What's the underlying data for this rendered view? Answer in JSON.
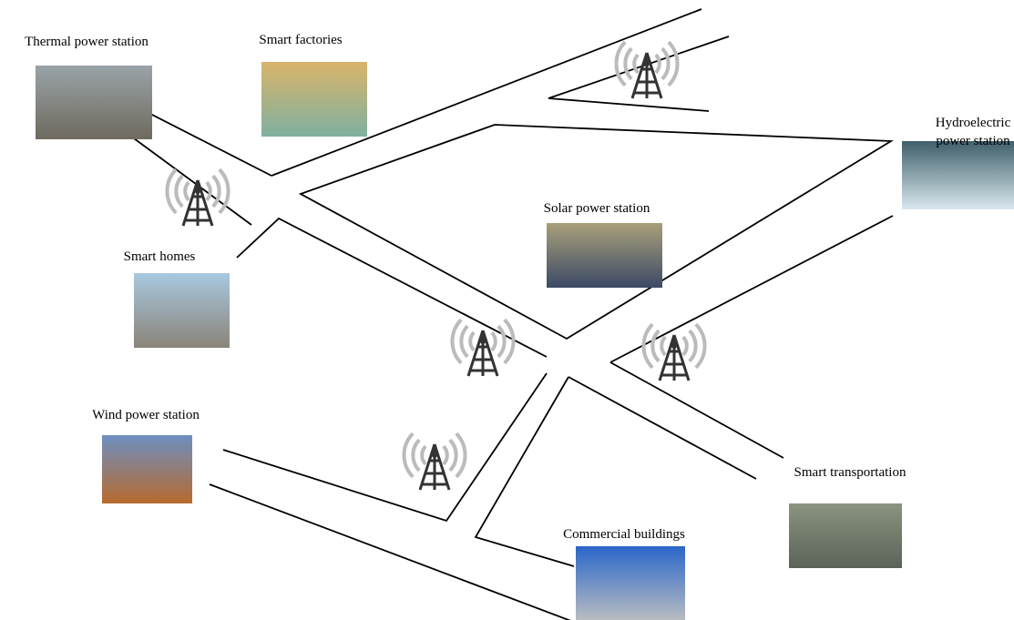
{
  "nodes": [
    {
      "label": "Thermal power station"
    },
    {
      "label": "Smart factories"
    },
    {
      "label": "Smart homes"
    },
    {
      "label": "Solar power station"
    },
    {
      "label": [
        "Hydroelectric",
        "power station"
      ]
    },
    {
      "label": "Wind power station"
    },
    {
      "label": "Smart transportation"
    },
    {
      "label": "Commercial buildings"
    }
  ]
}
